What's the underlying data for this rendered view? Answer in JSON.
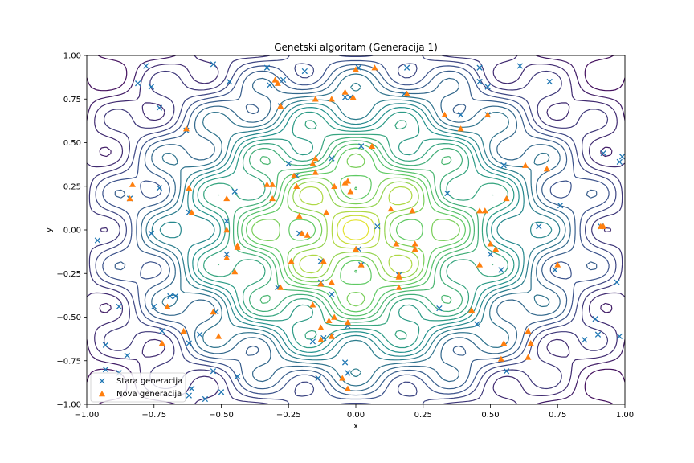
{
  "chart_data": {
    "type": "scatter",
    "title": "Genetski algoritam (Generacija 1)",
    "xlabel": "x",
    "ylabel": "y",
    "xlim": [
      -1.0,
      1.0
    ],
    "ylim": [
      -1.0,
      1.0
    ],
    "xticks": [
      "−1.00",
      "−0.75",
      "−0.50",
      "−0.25",
      "0.00",
      "0.25",
      "0.50",
      "0.75",
      "1.00"
    ],
    "yticks": [
      "−1.00",
      "−0.75",
      "−0.50",
      "−0.25",
      "0.00",
      "0.25",
      "0.50",
      "0.75",
      "1.00"
    ],
    "grid": false,
    "legend_position": "lower-left",
    "background": "contour plot of the fitness function (viridis colormap)",
    "colormap": [
      "#440154",
      "#3b528b",
      "#21918c",
      "#5ec962",
      "#fde725"
    ],
    "series": [
      {
        "name": "Stara generacija",
        "marker": "x",
        "color": "#1f77b4",
        "points": [
          [
            -0.78,
            0.94
          ],
          [
            -0.81,
            0.84
          ],
          [
            -0.76,
            0.82
          ],
          [
            -0.73,
            0.7
          ],
          [
            -0.53,
            0.95
          ],
          [
            -0.47,
            0.85
          ],
          [
            -0.33,
            0.93
          ],
          [
            -0.32,
            0.83
          ],
          [
            -0.27,
            0.86
          ],
          [
            -0.19,
            0.91
          ],
          [
            0.01,
            0.93
          ],
          [
            0.18,
            0.78
          ],
          [
            0.19,
            0.93
          ],
          [
            0.46,
            0.93
          ],
          [
            0.46,
            0.85
          ],
          [
            0.49,
            0.82
          ],
          [
            0.61,
            0.94
          ],
          [
            0.72,
            0.85
          ],
          [
            -0.04,
            0.76
          ],
          [
            -0.02,
            0.76
          ],
          [
            0.39,
            0.66
          ],
          [
            0.49,
            0.66
          ],
          [
            -0.28,
            0.71
          ],
          [
            -0.63,
            0.57
          ],
          [
            0.02,
            0.48
          ],
          [
            -0.09,
            0.41
          ],
          [
            -0.25,
            0.38
          ],
          [
            0.55,
            0.37
          ],
          [
            -0.84,
            0.18
          ],
          [
            -0.73,
            0.24
          ],
          [
            -0.45,
            0.22
          ],
          [
            -0.22,
            0.31
          ],
          [
            0.34,
            0.21
          ],
          [
            0.76,
            0.14
          ],
          [
            0.92,
            0.44
          ],
          [
            0.99,
            0.42
          ],
          [
            0.98,
            0.39
          ],
          [
            -0.62,
            0.1
          ],
          [
            -0.48,
            0.05
          ],
          [
            -0.96,
            -0.06
          ],
          [
            -0.76,
            -0.02
          ],
          [
            -0.21,
            -0.02
          ],
          [
            0.08,
            0.02
          ],
          [
            0.68,
            0.02
          ],
          [
            0.91,
            0.02
          ],
          [
            -0.48,
            -0.14
          ],
          [
            -0.13,
            -0.18
          ],
          [
            0.01,
            -0.11
          ],
          [
            0.02,
            -0.2
          ],
          [
            0.5,
            -0.14
          ],
          [
            0.54,
            -0.23
          ],
          [
            0.74,
            -0.23
          ],
          [
            0.16,
            -0.26
          ],
          [
            -0.29,
            -0.33
          ],
          [
            -0.13,
            -0.3
          ],
          [
            -0.09,
            -0.37
          ],
          [
            -0.69,
            -0.38
          ],
          [
            -0.67,
            -0.38
          ],
          [
            -0.88,
            -0.44
          ],
          [
            -0.75,
            -0.44
          ],
          [
            0.31,
            -0.45
          ],
          [
            -0.52,
            -0.47
          ],
          [
            0.45,
            -0.54
          ],
          [
            0.89,
            -0.51
          ],
          [
            0.97,
            -0.3
          ],
          [
            -0.72,
            -0.58
          ],
          [
            -0.58,
            -0.6
          ],
          [
            -0.62,
            -0.65
          ],
          [
            -0.16,
            -0.64
          ],
          [
            -0.12,
            -0.62
          ],
          [
            -0.09,
            -0.61
          ],
          [
            -0.03,
            -0.55
          ],
          [
            0.85,
            -0.63
          ],
          [
            0.9,
            -0.6
          ],
          [
            0.98,
            -0.61
          ],
          [
            -0.93,
            -0.66
          ],
          [
            -0.85,
            -0.72
          ],
          [
            -0.53,
            -0.81
          ],
          [
            -0.44,
            -0.84
          ],
          [
            -0.14,
            -0.85
          ],
          [
            -0.03,
            -0.82
          ],
          [
            -0.04,
            -0.76
          ],
          [
            0.56,
            -0.81
          ],
          [
            -0.93,
            -0.8
          ],
          [
            -0.88,
            -0.82
          ],
          [
            -0.61,
            -0.91
          ],
          [
            -0.5,
            -0.93
          ],
          [
            -0.56,
            -0.97
          ],
          [
            -0.62,
            -0.95
          ]
        ]
      },
      {
        "name": "Nova generacija",
        "marker": "triangle",
        "color": "#ff7f0e",
        "points": [
          [
            -0.3,
            0.86
          ],
          [
            -0.29,
            0.84
          ],
          [
            0.0,
            0.92
          ],
          [
            0.07,
            0.93
          ],
          [
            0.19,
            0.78
          ],
          [
            -0.04,
            0.79
          ],
          [
            -0.15,
            0.75
          ],
          [
            -0.09,
            0.75
          ],
          [
            -0.01,
            0.76
          ],
          [
            -0.28,
            0.71
          ],
          [
            0.33,
            0.66
          ],
          [
            0.49,
            0.66
          ],
          [
            -0.63,
            0.58
          ],
          [
            0.39,
            0.58
          ],
          [
            0.06,
            0.48
          ],
          [
            -0.15,
            0.41
          ],
          [
            -0.16,
            0.38
          ],
          [
            -0.23,
            0.31
          ],
          [
            -0.15,
            0.33
          ],
          [
            0.63,
            0.37
          ],
          [
            0.71,
            0.35
          ],
          [
            -0.04,
            0.27
          ],
          [
            -0.03,
            0.28
          ],
          [
            -0.02,
            0.22
          ],
          [
            -0.08,
            0.25
          ],
          [
            -0.83,
            0.26
          ],
          [
            -0.84,
            0.18
          ],
          [
            -0.62,
            0.24
          ],
          [
            -0.33,
            0.26
          ],
          [
            -0.31,
            0.26
          ],
          [
            -0.22,
            0.25
          ],
          [
            -0.31,
            0.18
          ],
          [
            -0.48,
            0.18
          ],
          [
            0.56,
            0.18
          ],
          [
            -0.61,
            0.1
          ],
          [
            -0.21,
            0.08
          ],
          [
            -0.11,
            0.1
          ],
          [
            0.13,
            0.12
          ],
          [
            0.21,
            0.11
          ],
          [
            0.46,
            0.11
          ],
          [
            0.48,
            0.11
          ],
          [
            0.91,
            0.02
          ],
          [
            -0.48,
            0.0
          ],
          [
            -0.2,
            -0.02
          ],
          [
            -0.18,
            -0.03
          ],
          [
            -0.44,
            -0.09
          ],
          [
            -0.44,
            -0.1
          ],
          [
            0.0,
            -0.11
          ],
          [
            0.15,
            -0.08
          ],
          [
            0.22,
            -0.08
          ],
          [
            0.22,
            -0.11
          ],
          [
            0.5,
            -0.08
          ],
          [
            0.52,
            -0.11
          ],
          [
            -0.48,
            -0.16
          ],
          [
            -0.24,
            -0.18
          ],
          [
            -0.12,
            -0.18
          ],
          [
            0.02,
            -0.2
          ],
          [
            0.46,
            -0.2
          ],
          [
            0.75,
            -0.2
          ],
          [
            -0.45,
            -0.24
          ],
          [
            0.16,
            -0.27
          ],
          [
            0.16,
            -0.33
          ],
          [
            -0.09,
            -0.3
          ],
          [
            -0.13,
            -0.31
          ],
          [
            -0.7,
            -0.44
          ],
          [
            -0.16,
            -0.43
          ],
          [
            -0.53,
            -0.47
          ],
          [
            0.43,
            -0.46
          ],
          [
            -0.08,
            -0.5
          ],
          [
            -0.1,
            -0.52
          ],
          [
            -0.03,
            -0.53
          ],
          [
            -0.13,
            -0.56
          ],
          [
            -0.64,
            -0.58
          ],
          [
            -0.51,
            -0.61
          ],
          [
            -0.09,
            -0.61
          ],
          [
            -0.13,
            -0.63
          ],
          [
            0.64,
            -0.58
          ],
          [
            -0.72,
            -0.65
          ],
          [
            0.55,
            -0.65
          ],
          [
            0.65,
            -0.65
          ],
          [
            0.54,
            -0.74
          ],
          [
            0.64,
            -0.73
          ],
          [
            -0.05,
            -0.85
          ],
          [
            -0.03,
            -0.91
          ],
          [
            0.92,
            0.02
          ],
          [
            -0.28,
            -0.33
          ],
          [
            0.16,
            -0.26
          ]
        ]
      }
    ]
  }
}
